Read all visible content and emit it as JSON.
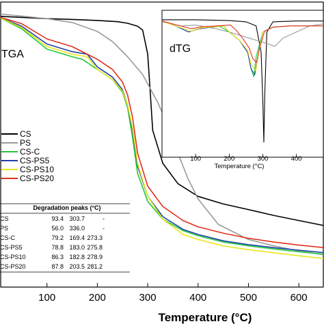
{
  "colors": {
    "CS": "#000000",
    "PS": "#9a9a9a",
    "CS-C": "#22c83a",
    "CS-PS5": "#1f3fa8",
    "CS-PS10": "#e8e61c",
    "CS-PS20": "#e0301e"
  },
  "chart_data": [
    {
      "type": "line",
      "panel_label": "TGA",
      "xlabel": "Temperature (°C)",
      "ylabel": "",
      "xlim": [
        0,
        650
      ],
      "ylim": [
        0,
        105
      ],
      "xticks": [
        "100",
        "200",
        "300",
        "400",
        "500",
        "600"
      ],
      "legend_position": "left-middle",
      "series": [
        {
          "name": "CS",
          "x": [
            0,
            50,
            100,
            150,
            200,
            240,
            260,
            280,
            290,
            300,
            305,
            310,
            330,
            360,
            400,
            450,
            500,
            550,
            600,
            650
          ],
          "y": [
            100,
            99.5,
            99,
            98.7,
            98.3,
            97.8,
            97.2,
            96,
            94.5,
            85,
            70,
            55,
            42,
            34,
            29,
            26,
            23.8,
            21.5,
            19.5,
            17.5
          ]
        },
        {
          "name": "PS",
          "x": [
            0,
            50,
            100,
            150,
            200,
            230,
            260,
            290,
            320,
            340,
            360,
            380,
            400,
            440,
            500,
            550,
            600,
            650
          ],
          "y": [
            101,
            100,
            99,
            97.5,
            94,
            90,
            84,
            77,
            66,
            57,
            46,
            36,
            28,
            18,
            12,
            9.5,
            7.5,
            6
          ]
        },
        {
          "name": "CS-C",
          "x": [
            0,
            50,
            100,
            150,
            170,
            200,
            230,
            250,
            260,
            270,
            280,
            300,
            330,
            370,
            400,
            450,
            500,
            550,
            600,
            650
          ],
          "y": [
            100,
            95,
            87,
            84,
            83,
            79,
            75,
            70,
            64,
            52,
            38,
            27,
            20,
            15.5,
            13.5,
            11,
            9.5,
            8.3,
            7.2,
            6.2
          ]
        },
        {
          "name": "CS-PS5",
          "x": [
            0,
            50,
            100,
            150,
            180,
            200,
            230,
            250,
            260,
            270,
            280,
            300,
            330,
            370,
            400,
            450,
            500,
            550,
            600,
            650
          ],
          "y": [
            100,
            96,
            89,
            86,
            85,
            80,
            76,
            71,
            65,
            55,
            41,
            29,
            21,
            16,
            14,
            11.5,
            10,
            8.8,
            7.8,
            6.8
          ]
        },
        {
          "name": "CS-PS10",
          "x": [
            0,
            50,
            100,
            150,
            180,
            200,
            230,
            250,
            260,
            270,
            280,
            300,
            330,
            370,
            400,
            450,
            500,
            550,
            600,
            650
          ],
          "y": [
            100,
            95.5,
            88,
            85,
            84,
            79,
            75,
            70.5,
            65,
            56,
            42,
            29,
            20,
            14,
            12,
            9.5,
            8,
            6.8,
            5.6,
            4.5
          ]
        },
        {
          "name": "CS-PS20",
          "x": [
            0,
            50,
            100,
            150,
            200,
            230,
            250,
            260,
            270,
            280,
            300,
            330,
            370,
            400,
            450,
            500,
            550,
            600,
            650
          ],
          "y": [
            100,
            97,
            91,
            88,
            83,
            79,
            74,
            69,
            60,
            46,
            33,
            25,
            19.5,
            17,
            14.5,
            12.5,
            11,
            9.8,
            8.8
          ]
        }
      ]
    },
    {
      "type": "line",
      "panel_label": "dTG",
      "xlabel": "Temperature (°C)",
      "xlim": [
        0,
        480
      ],
      "ylim": [
        -30,
        2
      ],
      "xticks": [
        "100",
        "200",
        "300",
        "400"
      ],
      "series": [
        {
          "name": "CS",
          "x": [
            0,
            100,
            200,
            250,
            280,
            295,
            300,
            303,
            306,
            312,
            330,
            400,
            480
          ],
          "y": [
            0,
            0,
            -0.2,
            -0.5,
            -1.5,
            -8,
            -20,
            -30,
            -18,
            -3,
            -0.5,
            -0.3,
            -0.3
          ]
        },
        {
          "name": "PS",
          "x": [
            0,
            30,
            56,
            100,
            150,
            200,
            260,
            300,
            336,
            360,
            400,
            440,
            480
          ],
          "y": [
            -0.5,
            -1,
            -1.5,
            -1.3,
            -2,
            -3,
            -4.5,
            -5.5,
            -6.5,
            -4.5,
            -3,
            -1.5,
            -1
          ]
        },
        {
          "name": "CS-C",
          "x": [
            0,
            40,
            79,
            110,
            169,
            200,
            230,
            255,
            265,
            273,
            280,
            300,
            330,
            380,
            430,
            480
          ],
          "y": [
            -0.3,
            -1.5,
            -3,
            -2.2,
            -1.5,
            -3,
            -5,
            -8,
            -12,
            -14,
            -9,
            -3,
            -1.8,
            -1.5,
            -1.5,
            -1.5
          ]
        },
        {
          "name": "CS-PS5",
          "x": [
            0,
            40,
            79,
            110,
            183,
            200,
            230,
            255,
            265,
            276,
            285,
            300,
            330,
            380,
            430,
            480
          ],
          "y": [
            -0.3,
            -1.5,
            -3,
            -2.2,
            -1.5,
            -3,
            -5,
            -8,
            -12,
            -13.5,
            -9,
            -3,
            -1.8,
            -1.5,
            -1.5,
            -1.5
          ]
        },
        {
          "name": "CS-PS10",
          "x": [
            0,
            40,
            86,
            115,
            183,
            200,
            230,
            255,
            265,
            279,
            288,
            300,
            330,
            380,
            430,
            480
          ],
          "y": [
            -0.3,
            -1.5,
            -2.8,
            -2,
            -1.5,
            -3,
            -5,
            -7.5,
            -11,
            -12.5,
            -8,
            -3,
            -1.8,
            -1.5,
            -1.5,
            -1.5
          ]
        },
        {
          "name": "CS-PS20",
          "x": [
            0,
            40,
            88,
            120,
            204,
            220,
            240,
            260,
            270,
            281,
            290,
            305,
            330,
            380,
            430,
            480
          ],
          "y": [
            -0.3,
            -1.2,
            -2.2,
            -1.7,
            -1.3,
            -2.5,
            -4.5,
            -7,
            -9.5,
            -10.5,
            -7,
            -2.8,
            -1.8,
            -1.5,
            -1.5,
            -1.5
          ]
        }
      ]
    }
  ],
  "table": {
    "title": "Degradation peaks (°C)",
    "rows": [
      {
        "name": "CS",
        "v": [
          "93.4",
          "303.7",
          "-"
        ]
      },
      {
        "name": "PS",
        "v": [
          "56.0",
          "336.0",
          "-"
        ]
      },
      {
        "name": "CS-C",
        "v": [
          "79.2",
          "169.4",
          "273.3"
        ]
      },
      {
        "name": "CS-PS5",
        "v": [
          "78.8",
          "183.0",
          "275.8"
        ]
      },
      {
        "name": "CS-PS10",
        "v": [
          "86.3",
          "182.8",
          "278.9"
        ]
      },
      {
        "name": "CS-PS20",
        "v": [
          "87.8",
          "203.5",
          "281.2"
        ]
      }
    ]
  }
}
